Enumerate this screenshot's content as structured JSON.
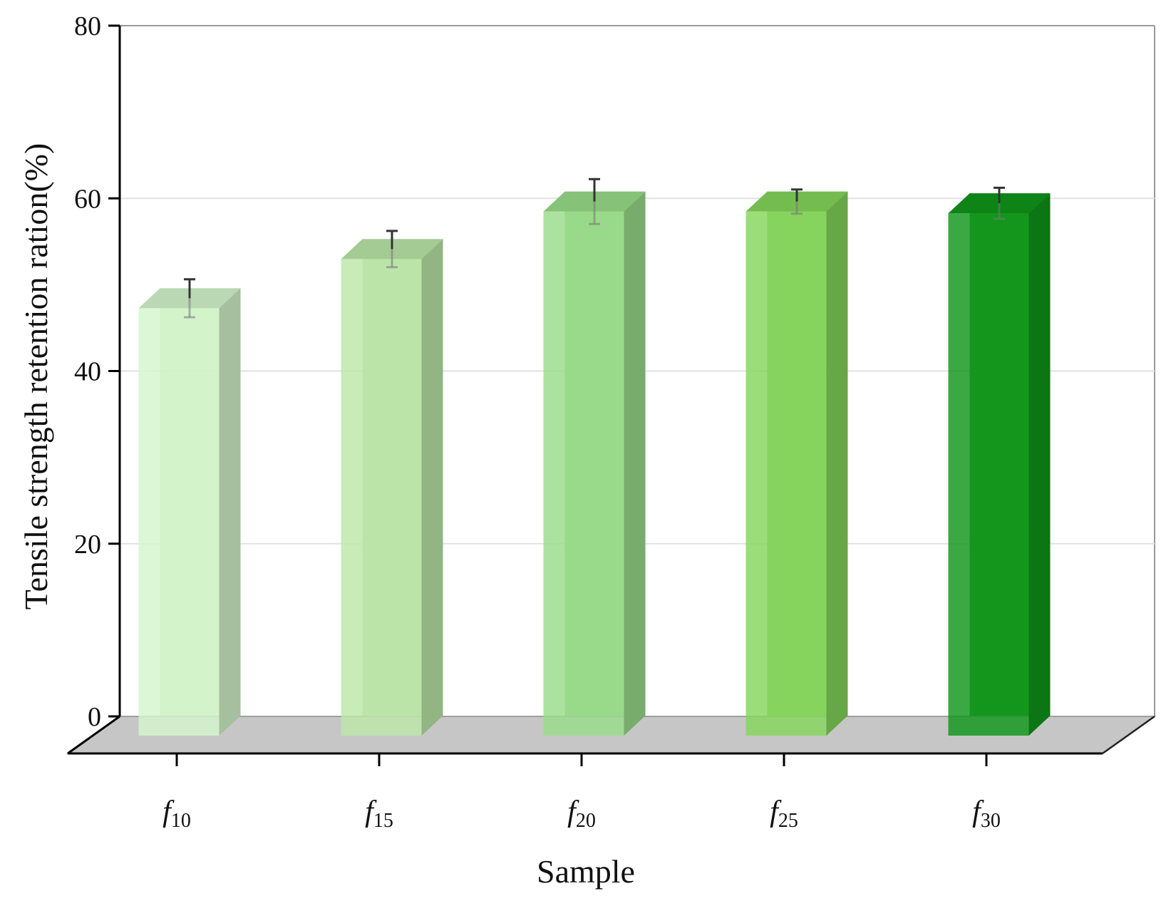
{
  "chart_data": {
    "type": "bar",
    "style": "3d",
    "xlabel": "Sample",
    "ylabel": "Tensile strength retention ration(%)",
    "ylim": [
      0,
      80
    ],
    "yticks": [
      0,
      20,
      40,
      60,
      80
    ],
    "grid": true,
    "categories": [
      {
        "base": "f",
        "sub": "10"
      },
      {
        "base": "f",
        "sub": "15"
      },
      {
        "base": "f",
        "sub": "20"
      },
      {
        "base": "f",
        "sub": "25"
      },
      {
        "base": "f",
        "sub": "30"
      }
    ],
    "values": [
      49.5,
      55.2,
      60.7,
      60.7,
      60.5
    ],
    "errors": [
      2.2,
      2.1,
      2.6,
      1.4,
      1.8
    ],
    "colors": [
      "#d4f5cc",
      "#bce7a8",
      "#99dc8a",
      "#85d65b",
      "#10961a"
    ]
  }
}
